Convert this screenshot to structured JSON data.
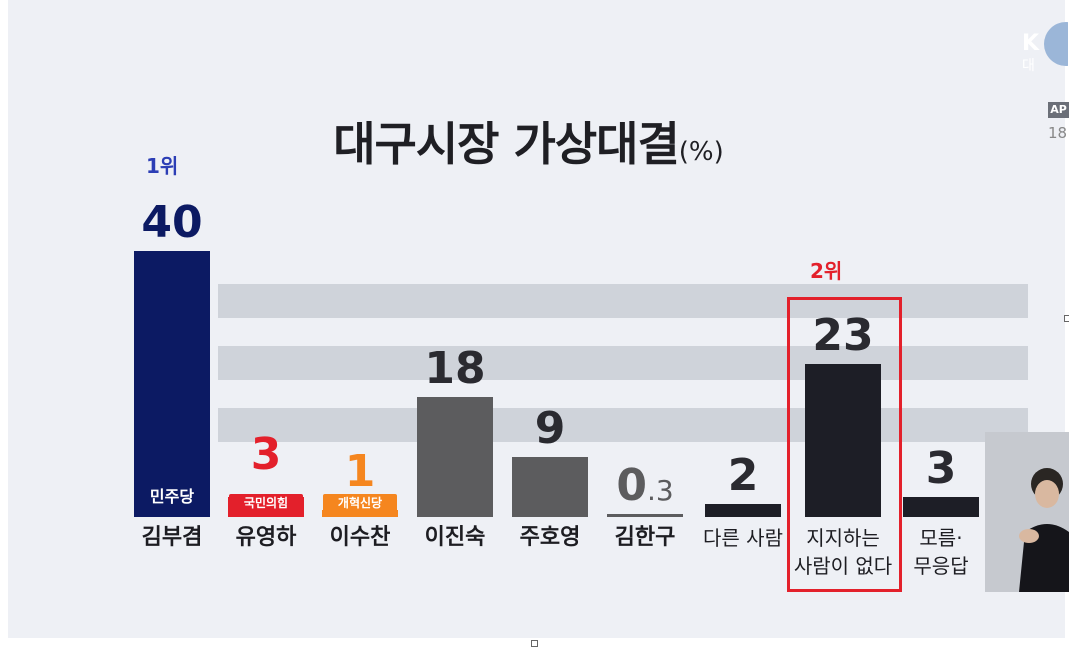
{
  "title": "대구시장 가상대결",
  "title_unit": "(%)",
  "broadcaster": {
    "logo_text": "K",
    "logo_sub": "대",
    "tag": "AP",
    "num": "18"
  },
  "ranks": {
    "first": "1위",
    "second": "2위"
  },
  "badges": {
    "democratic": "민주당",
    "ppp": "국민의힘",
    "reform": "개혁신당"
  },
  "colors": {
    "democratic": "#0c1a63",
    "ppp": "#e3202b",
    "reform": "#f5861f",
    "gray": "#5c5c5e",
    "dark": "#1d1e26",
    "highlight": "#e3202b",
    "rank1": "#2c3eb5"
  },
  "chart_data": {
    "type": "bar",
    "title": "대구시장 가상대결",
    "unit": "(%)",
    "categories": [
      "김부겸",
      "유영하",
      "이수찬",
      "이진숙",
      "주호영",
      "김한구",
      "다른 사람",
      "지지하는 사람이 없다",
      "모름·무응답"
    ],
    "category_lines": [
      [
        "김부겸"
      ],
      [
        "유영하"
      ],
      [
        "이수찬"
      ],
      [
        "이진숙"
      ],
      [
        "주호영"
      ],
      [
        "김한구"
      ],
      [
        "다른 사람"
      ],
      [
        "지지하는",
        "사람이 없다"
      ],
      [
        "모름·",
        "무응답"
      ]
    ],
    "values": [
      40,
      3,
      1,
      18,
      9,
      0.3,
      2,
      23,
      3
    ],
    "value_labels": [
      "40",
      "3",
      "1",
      "18",
      "9",
      "0.3",
      "2",
      "23",
      "3"
    ],
    "bar_colors": [
      "#0c1a63",
      "#e3202b",
      "#f5861f",
      "#5c5c5e",
      "#5c5c5e",
      "#5c5c5e",
      "#1d1e26",
      "#1d1e26",
      "#1d1e26"
    ],
    "ylim": [
      0,
      40
    ],
    "grid": false,
    "legend": "none"
  }
}
